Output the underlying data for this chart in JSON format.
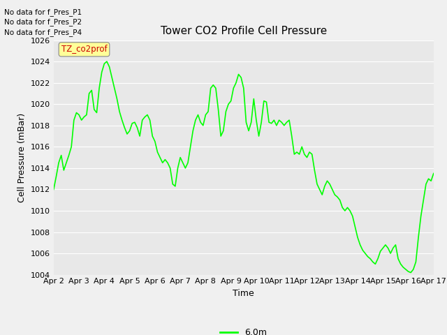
{
  "title": "Tower CO2 Profile Cell Pressure",
  "ylabel": "Cell Pressure (mBar)",
  "xlabel": "Time",
  "ylim": [
    1004,
    1026
  ],
  "xlim": [
    0,
    15
  ],
  "x_tick_labels": [
    "Apr 2",
    "Apr 3",
    "Apr 4",
    "Apr 5",
    "Apr 6",
    "Apr 7",
    "Apr 8",
    "Apr 9",
    "Apr 10",
    "Apr 11",
    "Apr 12",
    "Apr 13",
    "Apr 14",
    "Apr 15",
    "Apr 16",
    "Apr 17"
  ],
  "line_color": "#00ff00",
  "line_width": 1.2,
  "bg_color": "#e8e8e8",
  "fig_bg_color": "#f0f0f0",
  "legend_label": "6.0m",
  "legend_line_color": "#00ff00",
  "no_data_texts": [
    "No data for f_Pres_P1",
    "No data for f_Pres_P2",
    "No data for f_Pres_P4"
  ],
  "annotation_text": "TZ_co2prof",
  "annotation_color": "#cc0000",
  "annotation_bg": "#ffff99",
  "title_fontsize": 11,
  "label_fontsize": 9,
  "tick_fontsize": 8,
  "y_ticks": [
    1004,
    1006,
    1008,
    1010,
    1012,
    1014,
    1016,
    1018,
    1020,
    1022,
    1024,
    1026
  ],
  "x_values": [
    0.0,
    0.1,
    0.2,
    0.3,
    0.4,
    0.5,
    0.6,
    0.7,
    0.8,
    0.9,
    1.0,
    1.1,
    1.2,
    1.3,
    1.4,
    1.5,
    1.6,
    1.7,
    1.8,
    1.9,
    2.0,
    2.1,
    2.2,
    2.3,
    2.4,
    2.5,
    2.6,
    2.7,
    2.8,
    2.9,
    3.0,
    3.1,
    3.2,
    3.3,
    3.4,
    3.5,
    3.6,
    3.7,
    3.8,
    3.9,
    4.0,
    4.1,
    4.2,
    4.3,
    4.4,
    4.5,
    4.6,
    4.7,
    4.8,
    4.9,
    5.0,
    5.1,
    5.2,
    5.3,
    5.4,
    5.5,
    5.6,
    5.7,
    5.8,
    5.9,
    6.0,
    6.1,
    6.2,
    6.3,
    6.4,
    6.5,
    6.6,
    6.7,
    6.8,
    6.9,
    7.0,
    7.1,
    7.2,
    7.3,
    7.4,
    7.5,
    7.6,
    7.7,
    7.8,
    7.9,
    8.0,
    8.1,
    8.2,
    8.3,
    8.4,
    8.5,
    8.6,
    8.7,
    8.8,
    8.9,
    9.0,
    9.1,
    9.2,
    9.3,
    9.4,
    9.5,
    9.6,
    9.7,
    9.8,
    9.9,
    10.0,
    10.1,
    10.2,
    10.3,
    10.4,
    10.5,
    10.6,
    10.7,
    10.8,
    10.9,
    11.0,
    11.1,
    11.2,
    11.3,
    11.4,
    11.5,
    11.6,
    11.7,
    11.8,
    11.9,
    12.0,
    12.1,
    12.2,
    12.3,
    12.4,
    12.5,
    12.6,
    12.7,
    12.8,
    12.9,
    13.0,
    13.1,
    13.2,
    13.3,
    13.4,
    13.5,
    13.6,
    13.7,
    13.8,
    13.9,
    14.0,
    14.1,
    14.2,
    14.3,
    14.4,
    14.5,
    14.6,
    14.7,
    14.8,
    14.9,
    15.0
  ],
  "y_values": [
    1012.0,
    1013.2,
    1014.5,
    1015.2,
    1013.8,
    1014.5,
    1015.2,
    1016.0,
    1018.5,
    1019.2,
    1019.0,
    1018.5,
    1018.8,
    1019.0,
    1021.0,
    1021.3,
    1019.5,
    1019.2,
    1021.5,
    1023.0,
    1023.8,
    1024.0,
    1023.5,
    1022.5,
    1021.5,
    1020.5,
    1019.3,
    1018.5,
    1017.8,
    1017.2,
    1017.5,
    1018.2,
    1018.3,
    1017.8,
    1017.0,
    1018.5,
    1018.8,
    1019.0,
    1018.5,
    1017.0,
    1016.5,
    1015.5,
    1015.0,
    1014.5,
    1014.8,
    1014.5,
    1014.0,
    1012.5,
    1012.3,
    1014.0,
    1015.0,
    1014.5,
    1014.0,
    1014.5,
    1016.0,
    1017.5,
    1018.5,
    1019.0,
    1018.3,
    1018.0,
    1019.0,
    1019.3,
    1021.5,
    1021.8,
    1021.5,
    1019.5,
    1017.0,
    1017.5,
    1019.3,
    1020.0,
    1020.3,
    1021.5,
    1022.0,
    1022.8,
    1022.5,
    1021.5,
    1018.3,
    1017.5,
    1018.3,
    1020.5,
    1018.5,
    1017.0,
    1018.3,
    1020.3,
    1020.2,
    1018.3,
    1018.2,
    1018.5,
    1018.0,
    1018.5,
    1018.3,
    1018.0,
    1018.3,
    1018.5,
    1017.0,
    1015.3,
    1015.5,
    1015.3,
    1016.0,
    1015.3,
    1015.0,
    1015.5,
    1015.3,
    1013.8,
    1012.5,
    1012.0,
    1011.5,
    1012.3,
    1012.8,
    1012.5,
    1012.0,
    1011.5,
    1011.3,
    1011.0,
    1010.3,
    1010.0,
    1010.3,
    1010.0,
    1009.5,
    1008.5,
    1007.5,
    1006.8,
    1006.3,
    1006.0,
    1005.7,
    1005.5,
    1005.2,
    1005.0,
    1005.5,
    1006.2,
    1006.5,
    1006.8,
    1006.5,
    1006.0,
    1006.5,
    1006.8,
    1005.5,
    1005.0,
    1004.7,
    1004.5,
    1004.3,
    1004.2,
    1004.5,
    1005.2,
    1007.5,
    1009.5,
    1011.0,
    1012.5,
    1013.0,
    1012.8,
    1013.5
  ]
}
